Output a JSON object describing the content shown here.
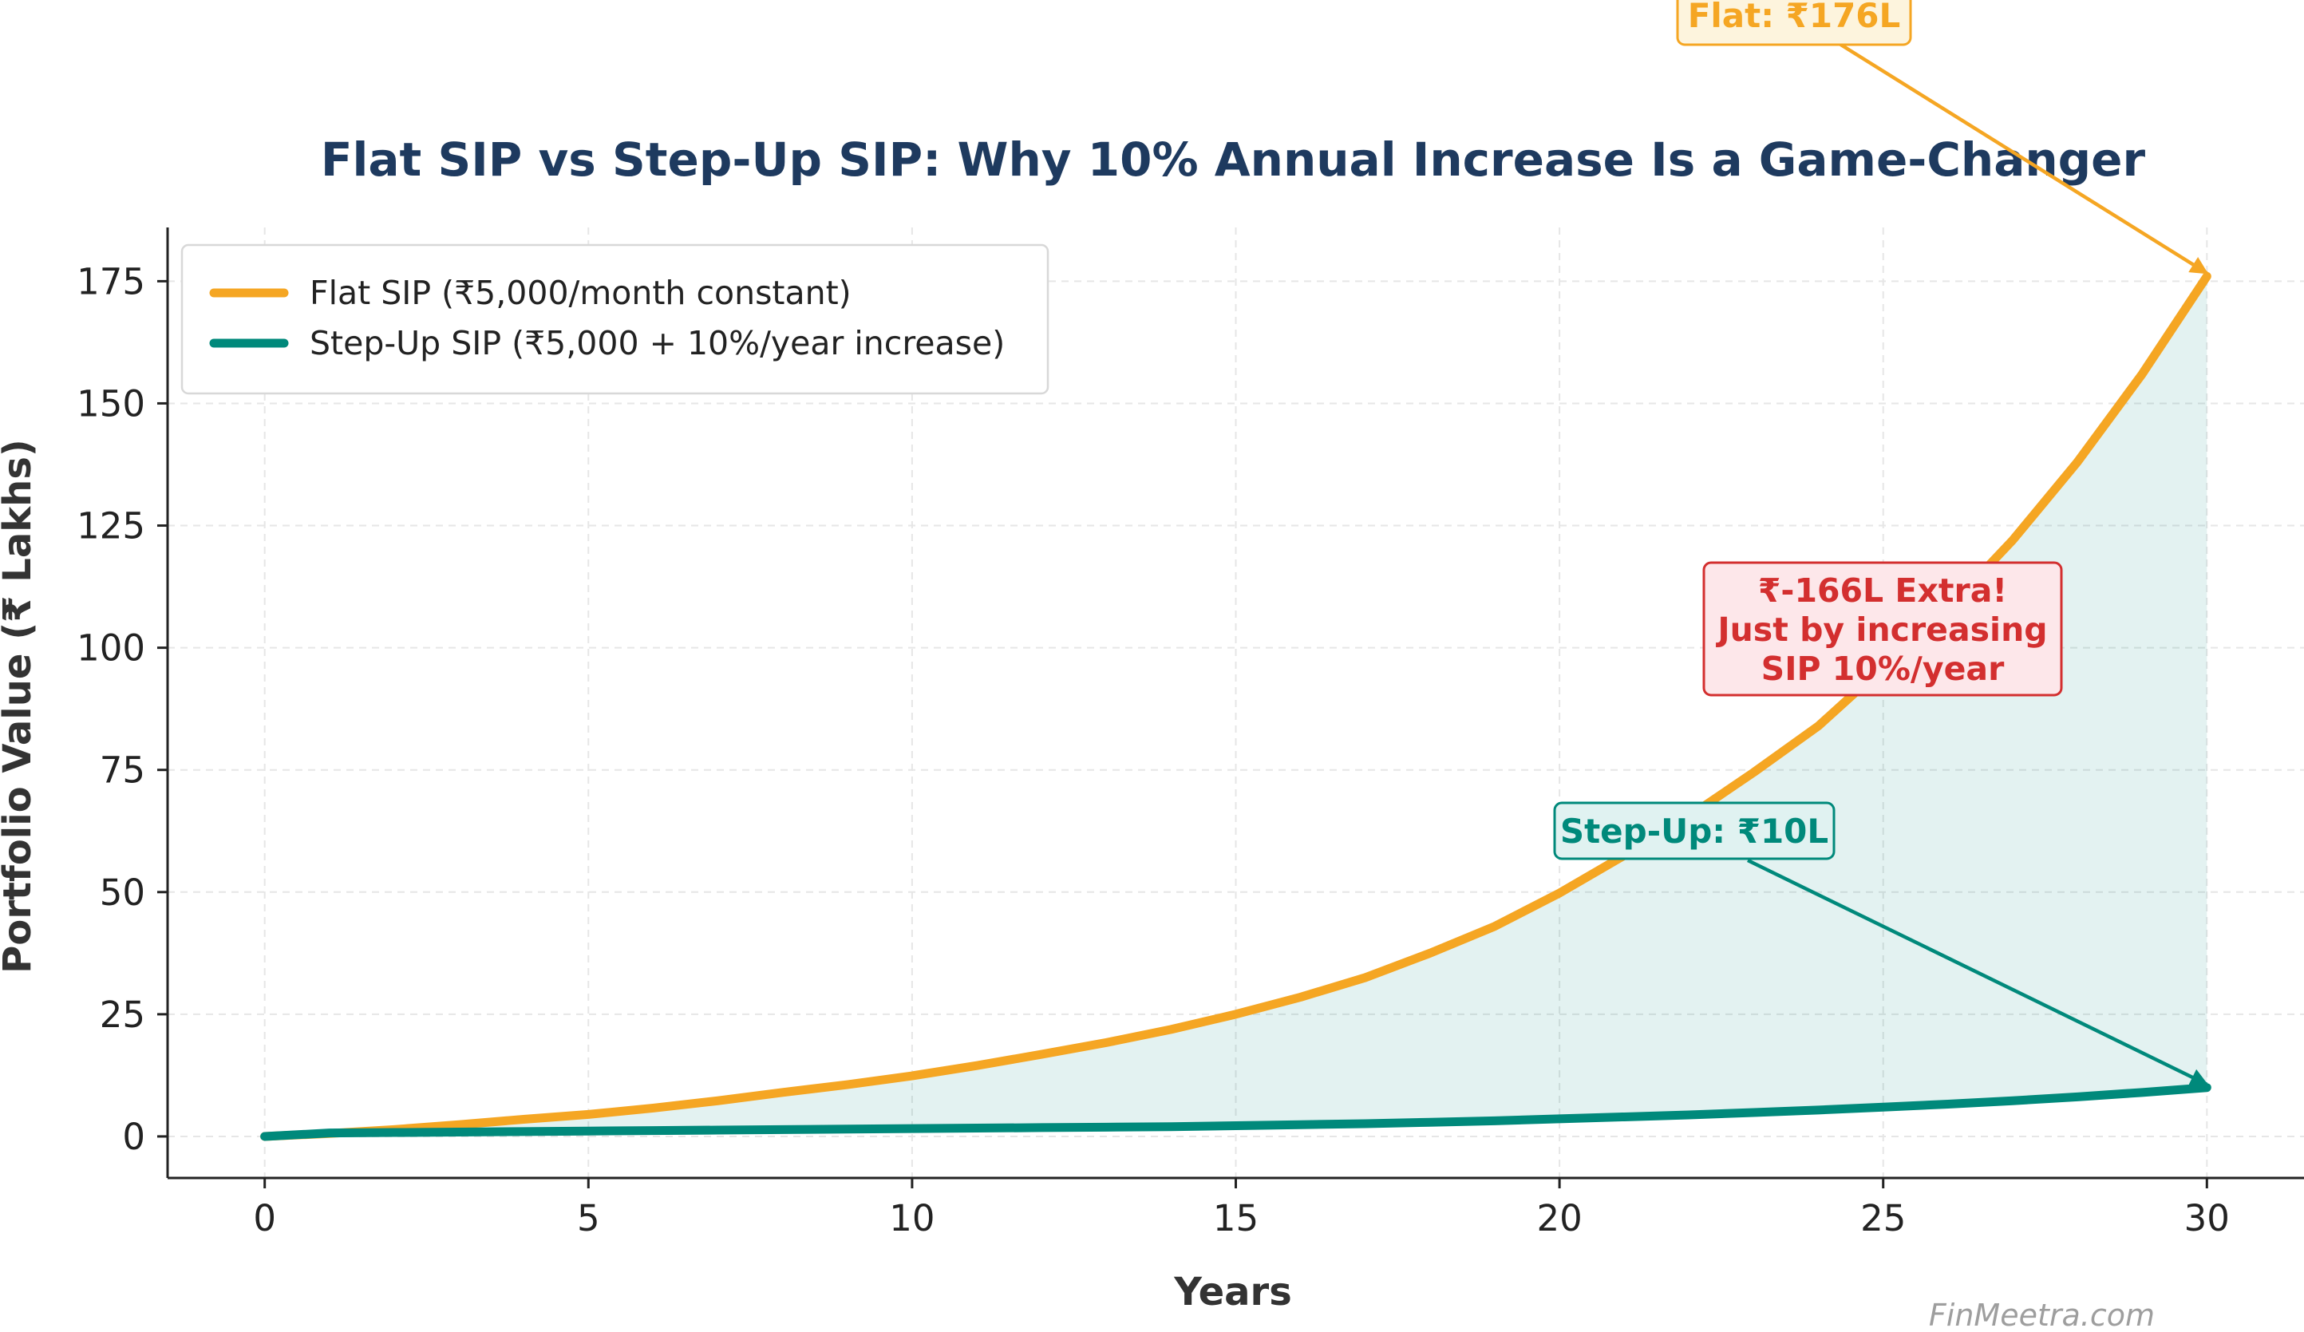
{
  "chart_data": {
    "type": "line",
    "title": "Flat SIP vs Step-Up SIP: Why 10% Annual Increase Is a Game-Changer",
    "xlabel": "Years",
    "ylabel": "Portfolio Value (₹ Lakhs)",
    "xlim": [
      -1.5,
      31.5
    ],
    "ylim": [
      -8.5,
      186
    ],
    "xticks": [
      0,
      5,
      10,
      15,
      20,
      25,
      30
    ],
    "yticks": [
      0,
      25,
      50,
      75,
      100,
      125,
      150,
      175
    ],
    "grid": true,
    "legend_position": "top-left",
    "x": [
      0,
      1,
      2,
      3,
      4,
      5,
      6,
      7,
      8,
      9,
      10,
      11,
      12,
      13,
      14,
      15,
      16,
      17,
      18,
      19,
      20,
      21,
      22,
      23,
      24,
      25,
      26,
      27,
      28,
      29,
      30
    ],
    "series": [
      {
        "name": "Flat SIP (₹5,000/month constant)",
        "color": "#f5a623",
        "values": [
          0,
          0.6,
          1.4,
          2.4,
          3.5,
          4.5,
          5.8,
          7.3,
          9.0,
          10.6,
          12.4,
          14.5,
          16.8,
          19.2,
          21.9,
          25.0,
          28.5,
          32.5,
          37.5,
          43.0,
          49.8,
          57.5,
          65.5,
          74.5,
          84.0,
          96.0,
          108.0,
          122.0,
          138.0,
          156.0,
          176.0
        ]
      },
      {
        "name": "Step-Up SIP (₹5,000 + 10%/year increase)",
        "color": "#00897b",
        "values": [
          0,
          0.7,
          0.8,
          0.9,
          1.0,
          1.1,
          1.2,
          1.3,
          1.4,
          1.5,
          1.6,
          1.7,
          1.8,
          1.9,
          2.0,
          2.2,
          2.4,
          2.6,
          2.9,
          3.2,
          3.6,
          4.0,
          4.4,
          4.9,
          5.4,
          6.0,
          6.6,
          7.3,
          8.1,
          9.0,
          10.0
        ]
      }
    ],
    "fill_between_color": "#00897b",
    "annotations": [
      {
        "text": "Flat: ₹176L",
        "target_x": 30,
        "target_y": 176,
        "color": "#f5a623",
        "background": "#fdf4dd"
      },
      {
        "text": "Step-Up: ₹10L",
        "target_x": 30,
        "target_y": 10,
        "color": "#00897b",
        "background": "#e0f2f1"
      },
      {
        "text": "₹-166L Extra!\nJust by increasing\nSIP 10%/year",
        "color": "#d32f2f",
        "background": "#fde7ea"
      }
    ],
    "watermark": "FinMeetra.com",
    "colors": {
      "title": "#1e3a5f",
      "axis_label": "#333333",
      "watermark": "#9e9e9e"
    }
  }
}
